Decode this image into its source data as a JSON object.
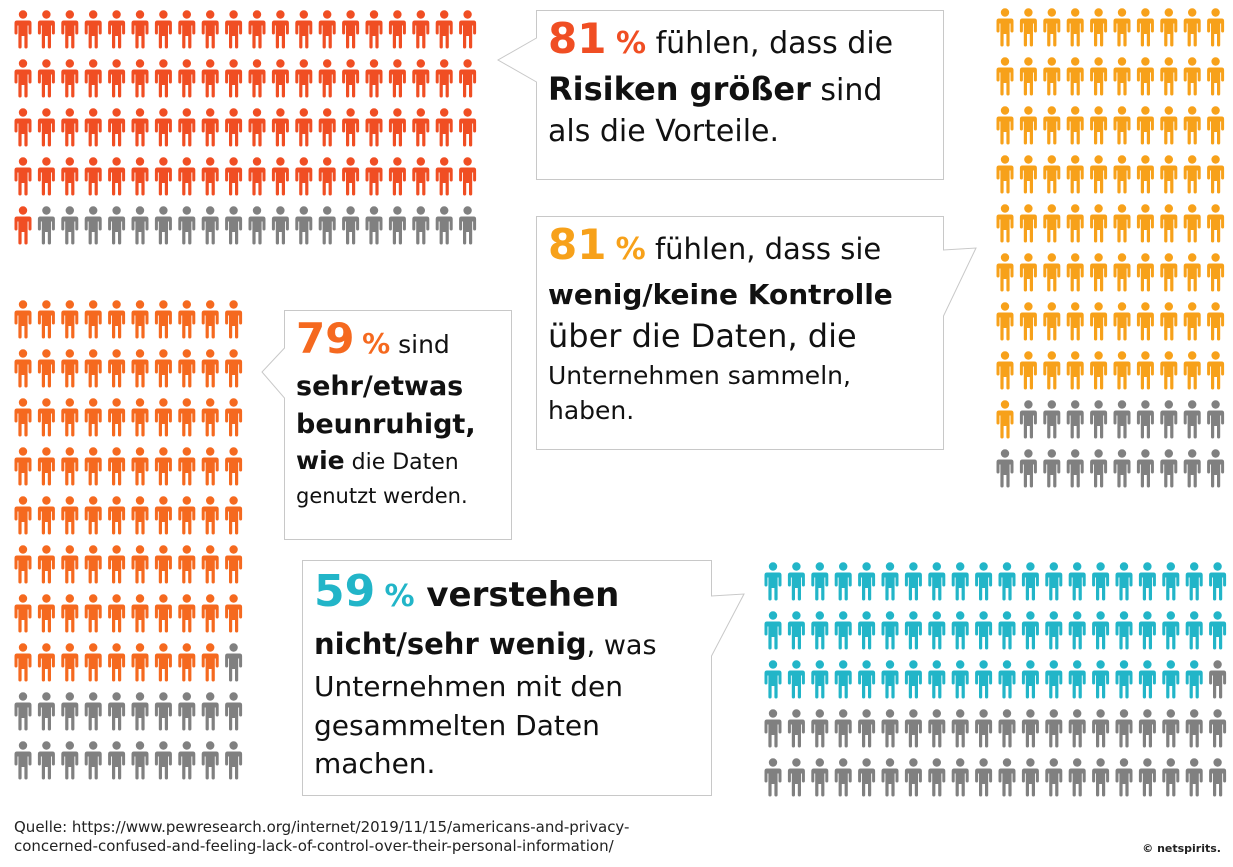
{
  "chart_data": [
    {
      "type": "pictogram",
      "value_percent": 81,
      "total_icons": 100,
      "filled_icons": 81,
      "rows": 5,
      "cols": 20,
      "fill_color": "#f04e23",
      "empty_color": "#808080",
      "statement": {
        "number": "81",
        "percent_sign": "%",
        "parts": [
          {
            "text": " fühlen, dass die",
            "style": "normal"
          },
          {
            "text": "Risiken größer",
            "style": "bold"
          },
          {
            "text": " sind",
            "style": "normal"
          },
          {
            "text": "als die Vorteile.",
            "style": "normal"
          }
        ]
      }
    },
    {
      "type": "pictogram",
      "value_percent": 81,
      "total_icons": 100,
      "filled_icons": 81,
      "rows": 10,
      "cols": 10,
      "fill_color": "#f7a11a",
      "empty_color": "#808080",
      "statement": {
        "number": "81",
        "percent_sign": "%",
        "parts": [
          {
            "text": " fühlen, dass sie",
            "style": "normal"
          },
          {
            "text": "wenig/keine Kontrolle",
            "style": "bold"
          },
          {
            "text": "über die Daten, die",
            "style": "normal"
          },
          {
            "text": "Unternehmen sammeln,",
            "style": "normal"
          },
          {
            "text": "haben.",
            "style": "normal"
          }
        ]
      }
    },
    {
      "type": "pictogram",
      "value_percent": 79,
      "total_icons": 100,
      "filled_icons": 79,
      "rows": 10,
      "cols": 10,
      "fill_color": "#f5691f",
      "empty_color": "#808080",
      "statement": {
        "number": "79",
        "percent_sign": "%",
        "parts": [
          {
            "text": " sind",
            "style": "normal"
          },
          {
            "text": "sehr/etwas",
            "style": "bold"
          },
          {
            "text": "beunruhigt,",
            "style": "bold"
          },
          {
            "text": "wie",
            "style": "bold"
          },
          {
            "text": " die Daten",
            "style": "normal"
          },
          {
            "text": "genutzt werden.",
            "style": "normal"
          }
        ]
      }
    },
    {
      "type": "pictogram",
      "value_percent": 59,
      "total_icons": 100,
      "filled_icons": 59,
      "rows": 5,
      "cols": 20,
      "fill_color": "#22b5c8",
      "empty_color": "#808080",
      "statement": {
        "number": "59",
        "percent_sign": "%",
        "parts": [
          {
            "text": " verstehen",
            "style": "bold"
          },
          {
            "text": "nicht/sehr wenig",
            "style": "bold"
          },
          {
            "text": ", was",
            "style": "normal"
          },
          {
            "text": "Unternehmen mit den",
            "style": "normal"
          },
          {
            "text": "gesammelten Daten",
            "style": "normal"
          },
          {
            "text": "machen.",
            "style": "normal"
          }
        ]
      }
    }
  ],
  "footer": {
    "source_line1": "Quelle: https://www.pewresearch.org/internet/2019/11/15/americans-and-privacy-",
    "source_line2": "concerned-confused-and-feeling-lack-of-control-over-their-personal-information/",
    "brand": "© netspirits."
  }
}
